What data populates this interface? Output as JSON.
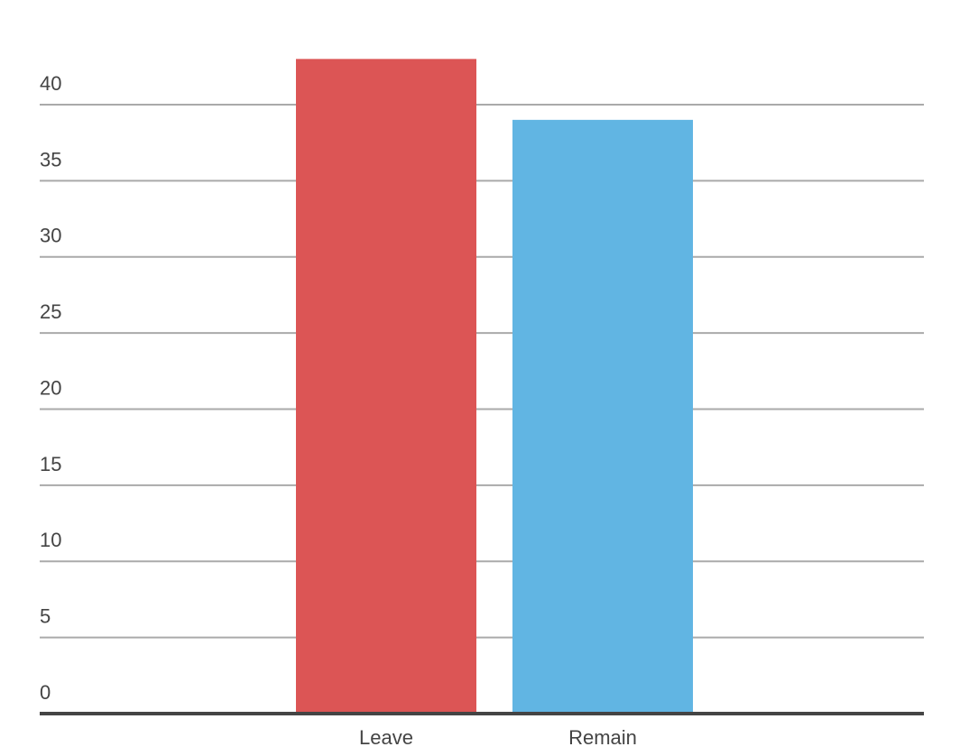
{
  "chart_data": {
    "type": "bar",
    "categories": [
      "Leave",
      "Remain"
    ],
    "values": [
      43,
      39
    ],
    "colors": [
      "#dc5555",
      "#61b5e3"
    ],
    "ylim": [
      0,
      45
    ],
    "yticks": [
      0,
      5,
      10,
      15,
      20,
      25,
      30,
      35,
      40
    ],
    "grid": true
  }
}
